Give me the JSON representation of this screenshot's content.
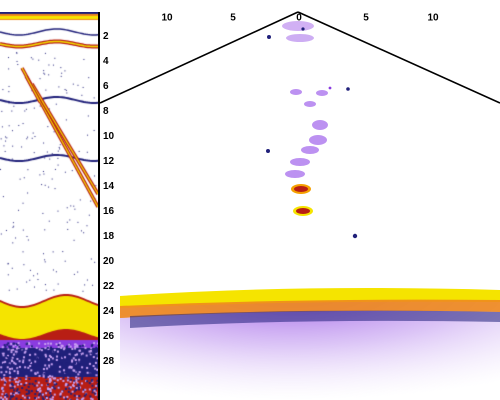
{
  "depth_ticks": [
    "2",
    "4",
    "6",
    "8",
    "10",
    "12",
    "14",
    "16",
    "18",
    "20",
    "22",
    "24",
    "26",
    "28"
  ],
  "range_ticks": [
    "10",
    "5",
    "0",
    "5",
    "10"
  ],
  "colors": {
    "background": "#ffffff",
    "axis": "#000000",
    "echo_strong": "#f5e400",
    "echo_orange": "#f08a1c",
    "echo_red": "#b81e14",
    "echo_navy": "#20207a",
    "echo_purple": "#8a3ce0",
    "echo_lavender": "#c9a2f2"
  }
}
